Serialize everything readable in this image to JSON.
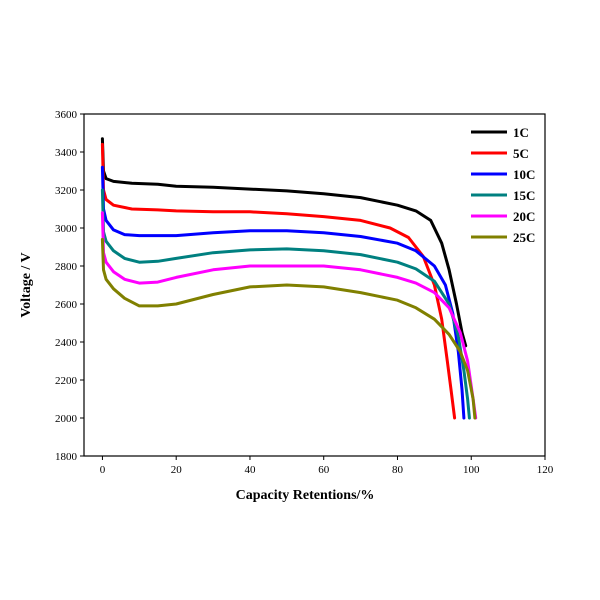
{
  "chart_data": {
    "type": "line",
    "xlabel": "Capacity Retentions/%",
    "ylabel": "Voltage / V",
    "xlim": [
      -5,
      120
    ],
    "ylim": [
      1800,
      3600
    ],
    "xticks": [
      0,
      20,
      40,
      60,
      80,
      100,
      120
    ],
    "yticks": [
      1800,
      2000,
      2200,
      2400,
      2600,
      2800,
      3000,
      3200,
      3400,
      3600
    ],
    "legend_position": "top-right",
    "series": [
      {
        "name": "1C",
        "color": "#000000",
        "points": [
          [
            0,
            3470
          ],
          [
            0.3,
            3300
          ],
          [
            1,
            3260
          ],
          [
            3,
            3245
          ],
          [
            8,
            3235
          ],
          [
            15,
            3230
          ],
          [
            20,
            3220
          ],
          [
            30,
            3215
          ],
          [
            40,
            3205
          ],
          [
            50,
            3195
          ],
          [
            60,
            3180
          ],
          [
            70,
            3160
          ],
          [
            80,
            3120
          ],
          [
            85,
            3090
          ],
          [
            89,
            3040
          ],
          [
            92,
            2920
          ],
          [
            94,
            2780
          ],
          [
            96,
            2600
          ],
          [
            97.5,
            2450
          ],
          [
            98.5,
            2380
          ]
        ]
      },
      {
        "name": "5C",
        "color": "#ff0000",
        "points": [
          [
            0,
            3440
          ],
          [
            0.3,
            3200
          ],
          [
            1,
            3150
          ],
          [
            3,
            3120
          ],
          [
            8,
            3100
          ],
          [
            15,
            3095
          ],
          [
            20,
            3090
          ],
          [
            30,
            3085
          ],
          [
            40,
            3085
          ],
          [
            50,
            3075
          ],
          [
            60,
            3060
          ],
          [
            70,
            3040
          ],
          [
            78,
            3000
          ],
          [
            83,
            2950
          ],
          [
            87,
            2850
          ],
          [
            90,
            2700
          ],
          [
            92,
            2520
          ],
          [
            93.5,
            2300
          ],
          [
            94.5,
            2150
          ],
          [
            95.5,
            2000
          ]
        ]
      },
      {
        "name": "10C",
        "color": "#0000ff",
        "points": [
          [
            0,
            3320
          ],
          [
            0.3,
            3100
          ],
          [
            1,
            3040
          ],
          [
            3,
            2990
          ],
          [
            6,
            2965
          ],
          [
            10,
            2960
          ],
          [
            20,
            2960
          ],
          [
            30,
            2975
          ],
          [
            40,
            2985
          ],
          [
            50,
            2985
          ],
          [
            60,
            2975
          ],
          [
            70,
            2955
          ],
          [
            80,
            2920
          ],
          [
            85,
            2880
          ],
          [
            90,
            2800
          ],
          [
            93,
            2700
          ],
          [
            95,
            2550
          ],
          [
            96.5,
            2350
          ],
          [
            97.5,
            2150
          ],
          [
            98,
            2000
          ]
        ]
      },
      {
        "name": "15C",
        "color": "#008080",
        "points": [
          [
            0,
            3200
          ],
          [
            0.3,
            2980
          ],
          [
            1,
            2930
          ],
          [
            3,
            2880
          ],
          [
            6,
            2840
          ],
          [
            10,
            2820
          ],
          [
            15,
            2825
          ],
          [
            20,
            2840
          ],
          [
            30,
            2870
          ],
          [
            40,
            2885
          ],
          [
            50,
            2890
          ],
          [
            60,
            2880
          ],
          [
            70,
            2860
          ],
          [
            80,
            2820
          ],
          [
            85,
            2785
          ],
          [
            90,
            2720
          ],
          [
            94,
            2600
          ],
          [
            96.5,
            2430
          ],
          [
            98,
            2250
          ],
          [
            99,
            2100
          ],
          [
            99.5,
            2000
          ]
        ]
      },
      {
        "name": "20C",
        "color": "#ff00ff",
        "points": [
          [
            0,
            3080
          ],
          [
            0.3,
            2870
          ],
          [
            1,
            2820
          ],
          [
            3,
            2770
          ],
          [
            6,
            2730
          ],
          [
            10,
            2710
          ],
          [
            15,
            2715
          ],
          [
            20,
            2740
          ],
          [
            30,
            2780
          ],
          [
            40,
            2800
          ],
          [
            50,
            2800
          ],
          [
            60,
            2800
          ],
          [
            70,
            2780
          ],
          [
            80,
            2740
          ],
          [
            85,
            2710
          ],
          [
            90,
            2660
          ],
          [
            94,
            2580
          ],
          [
            97,
            2450
          ],
          [
            99,
            2300
          ],
          [
            100.5,
            2100
          ],
          [
            101.2,
            2000
          ]
        ]
      },
      {
        "name": "25C",
        "color": "#808000",
        "points": [
          [
            0,
            2940
          ],
          [
            0.3,
            2780
          ],
          [
            1,
            2730
          ],
          [
            3,
            2680
          ],
          [
            6,
            2630
          ],
          [
            10,
            2590
          ],
          [
            15,
            2590
          ],
          [
            20,
            2600
          ],
          [
            30,
            2650
          ],
          [
            40,
            2690
          ],
          [
            50,
            2700
          ],
          [
            60,
            2690
          ],
          [
            70,
            2660
          ],
          [
            80,
            2620
          ],
          [
            85,
            2580
          ],
          [
            90,
            2520
          ],
          [
            94,
            2440
          ],
          [
            97,
            2350
          ],
          [
            99,
            2250
          ],
          [
            100.5,
            2100
          ],
          [
            101,
            2000
          ]
        ]
      }
    ]
  }
}
